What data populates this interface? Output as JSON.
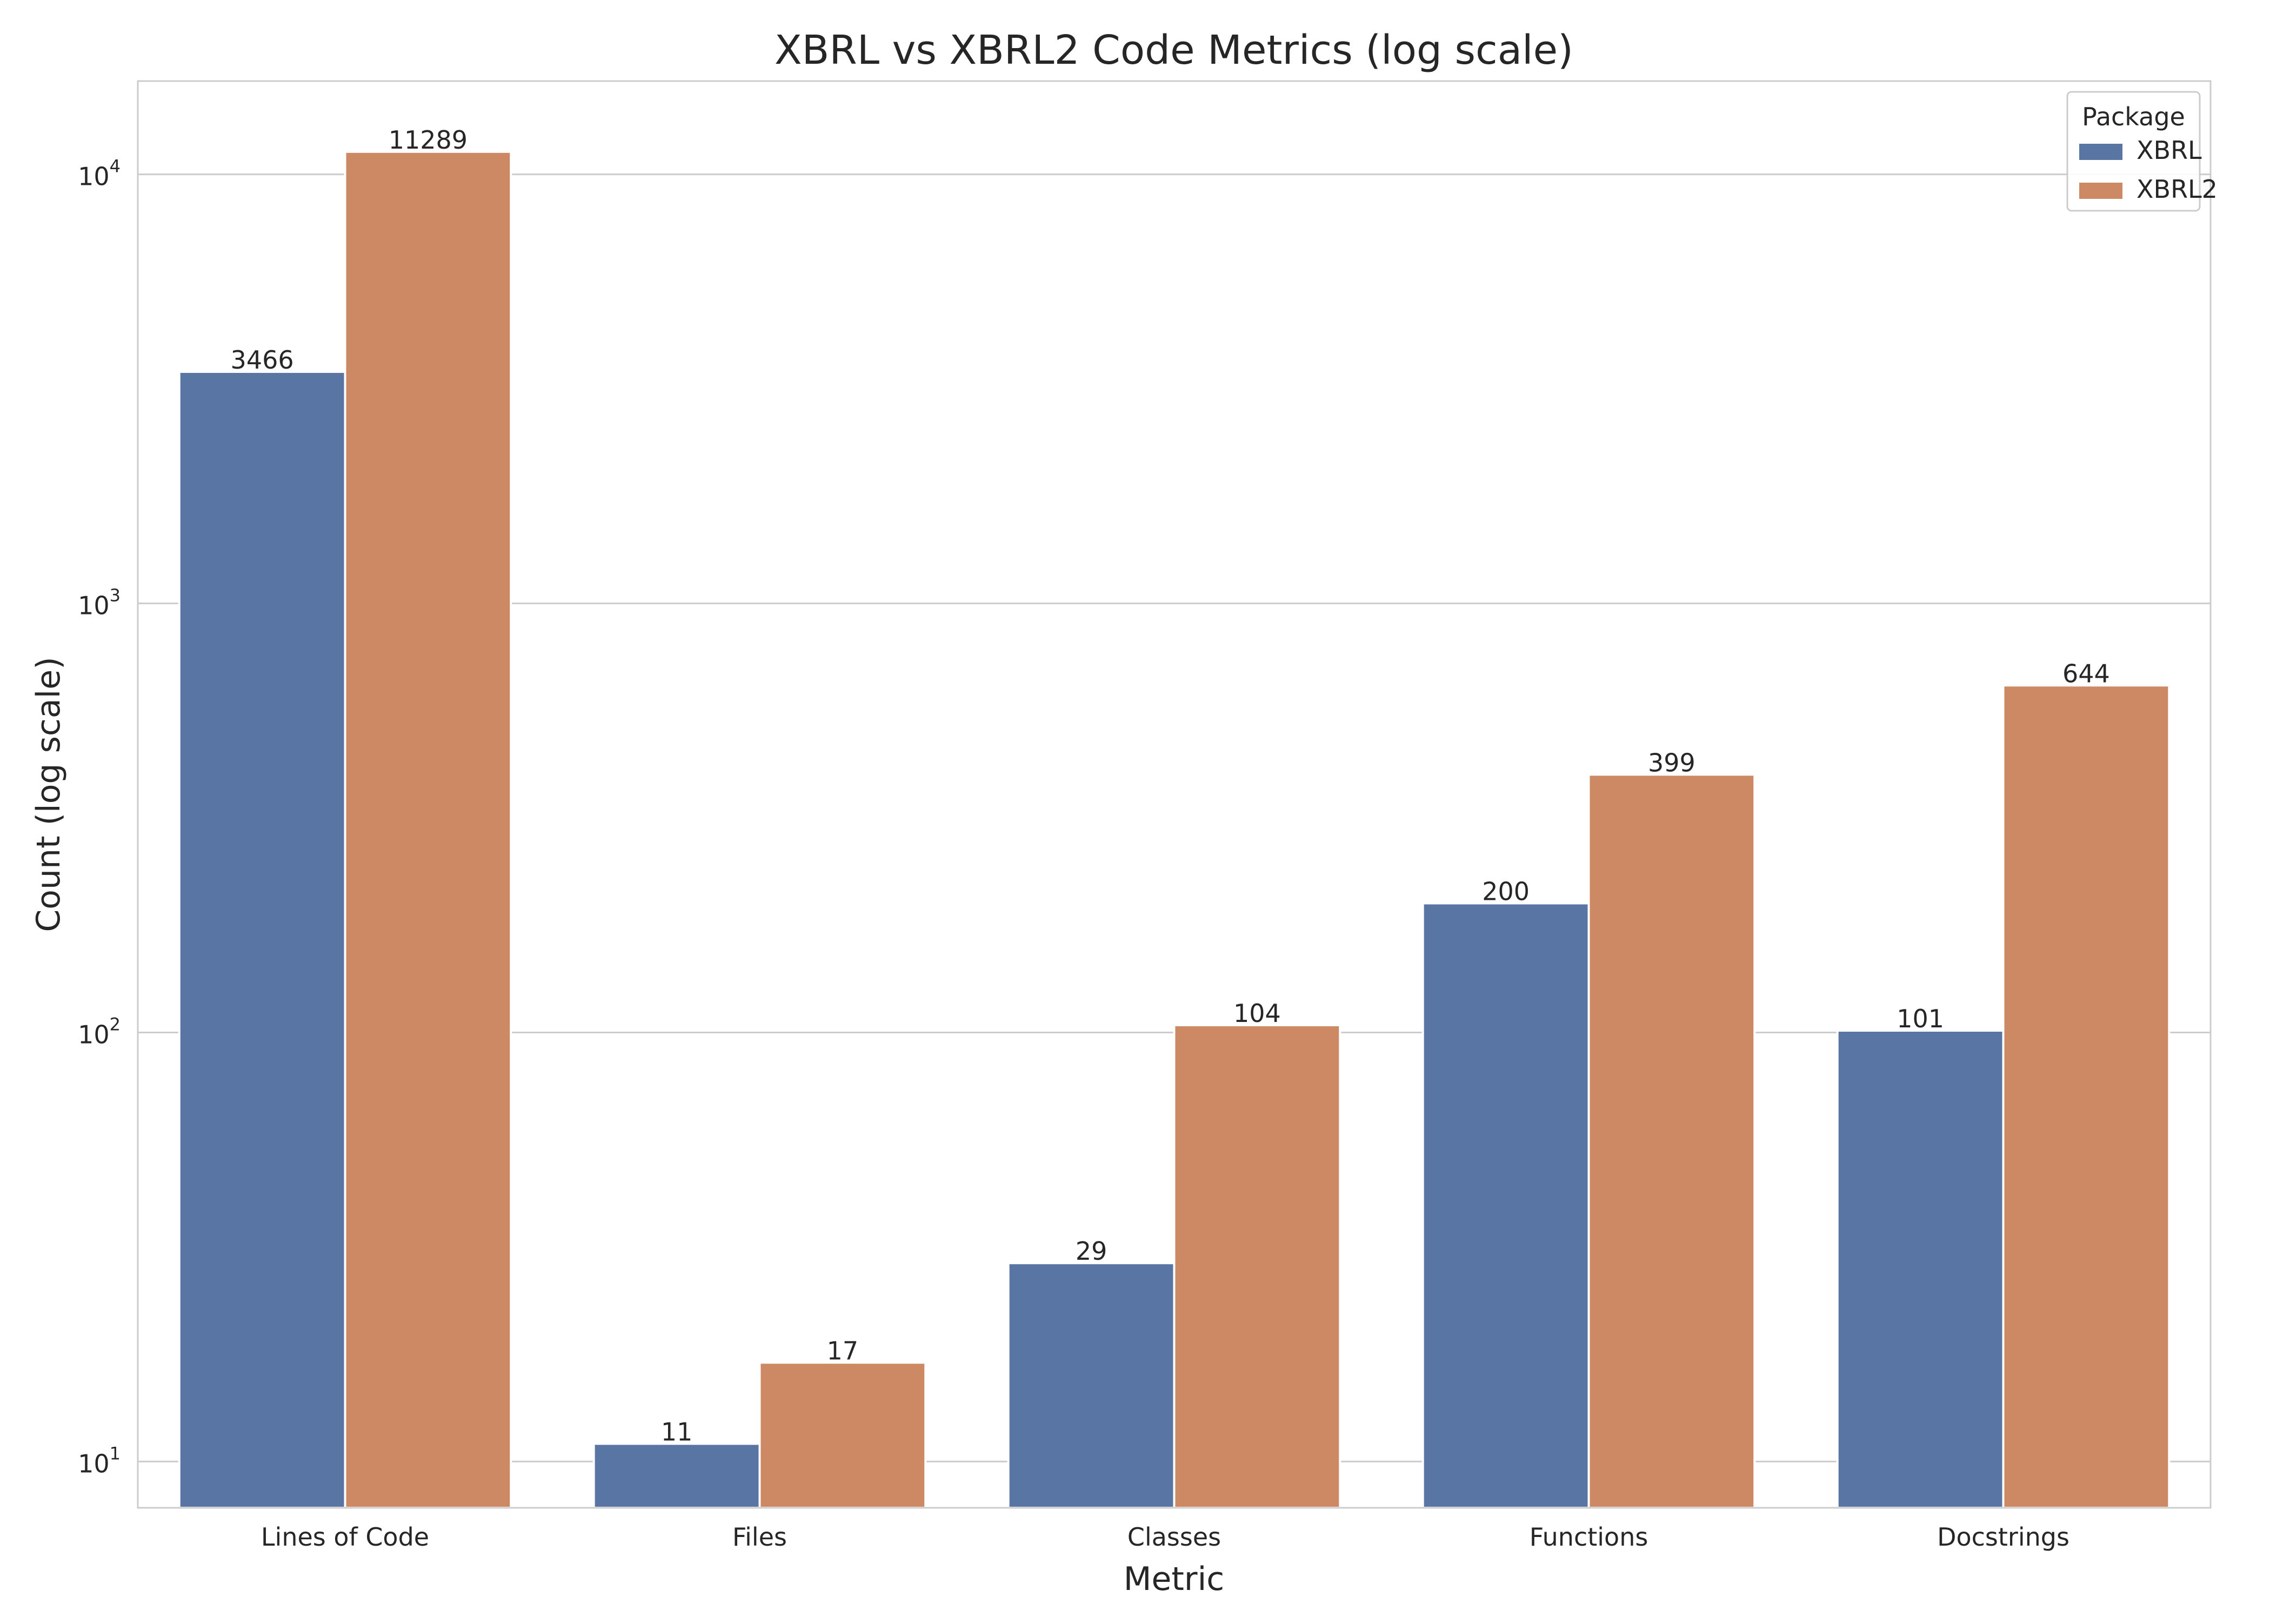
{
  "chart_data": {
    "type": "bar",
    "title": "XBRL vs XBRL2 Code Metrics (log scale)",
    "xlabel": "Metric",
    "ylabel": "Count (log scale)",
    "yscale": "log",
    "ylim": [
      7.8,
      16500
    ],
    "yticks": [
      {
        "value": 10,
        "base": "10",
        "exp": "1"
      },
      {
        "value": 100,
        "base": "10",
        "exp": "2"
      },
      {
        "value": 1000,
        "base": "10",
        "exp": "3"
      },
      {
        "value": 10000,
        "base": "10",
        "exp": "4"
      }
    ],
    "grid": true,
    "legend": {
      "title": "Package",
      "position": "top-right"
    },
    "categories": [
      "Lines of Code",
      "Files",
      "Classes",
      "Functions",
      "Docstrings"
    ],
    "series": [
      {
        "name": "XBRL",
        "color": "#5975a4",
        "values": [
          3466,
          11,
          29,
          200,
          101
        ]
      },
      {
        "name": "XBRL2",
        "color": "#cc8963",
        "values": [
          11289,
          17,
          104,
          399,
          644
        ]
      }
    ]
  }
}
